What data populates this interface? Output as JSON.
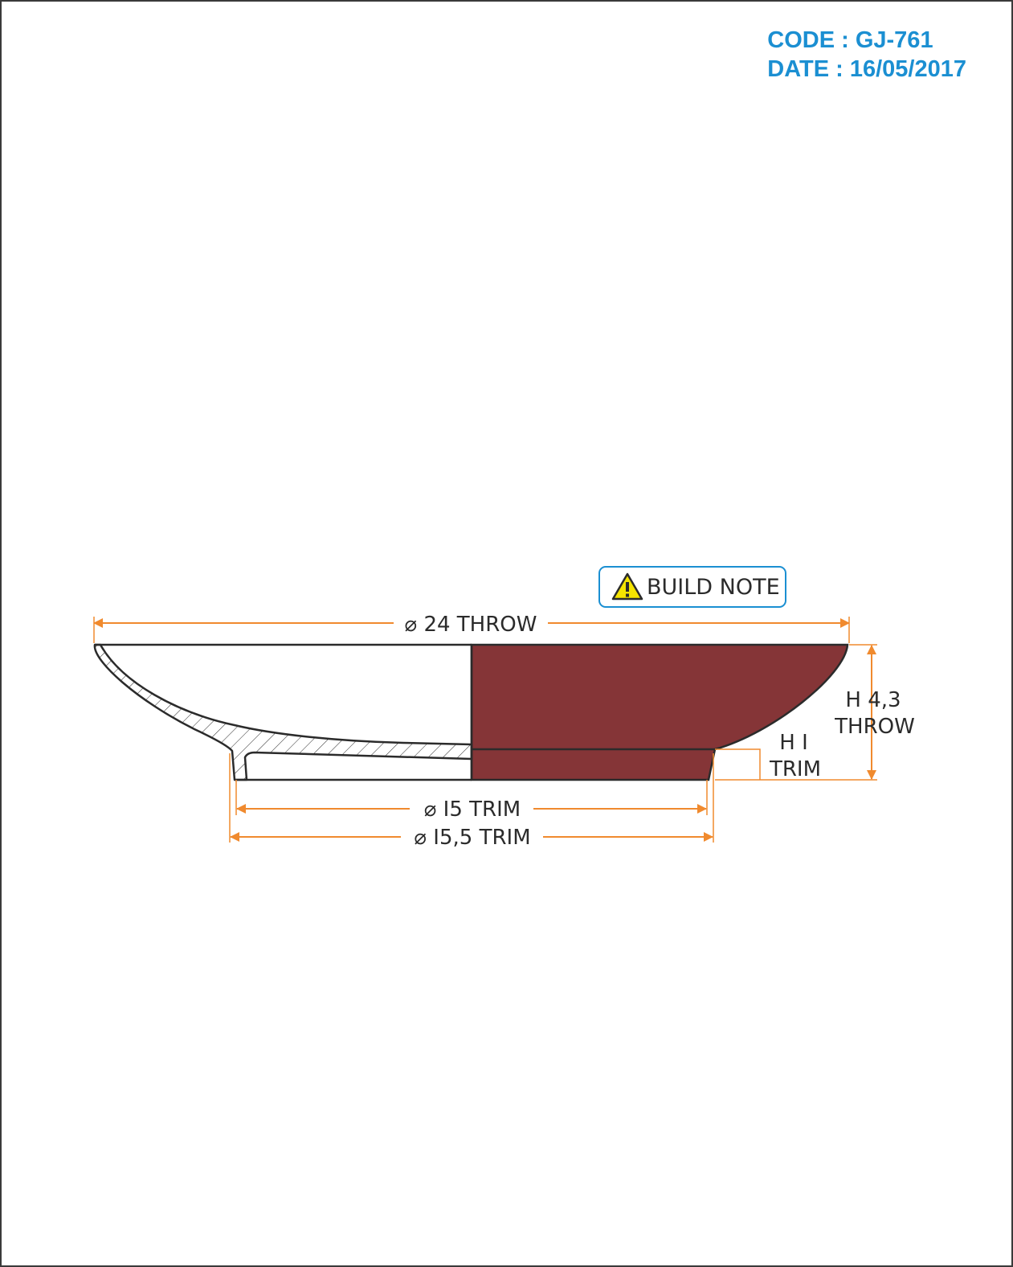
{
  "header": {
    "code": "CODE : GJ-761",
    "date": "DATE : 16/05/2017"
  },
  "build_note": {
    "label": "BUILD NOTE",
    "icon": "warning-icon"
  },
  "dimensions": {
    "throw_diameter": "⌀ 24 THROW",
    "throw_height_line1": "H 4,3",
    "throw_height_line2": "THROW",
    "trim_height_line1": "H I",
    "trim_height_line2": "TRIM",
    "trim_diameter_inner": "⌀ I5 TRIM",
    "trim_diameter_outer": "⌀ I5,5 TRIM"
  },
  "colors": {
    "accent": "#1b8fd2",
    "dimension": "#f08a2e",
    "body_fill": "#853537",
    "outline": "#2b2b2b"
  }
}
